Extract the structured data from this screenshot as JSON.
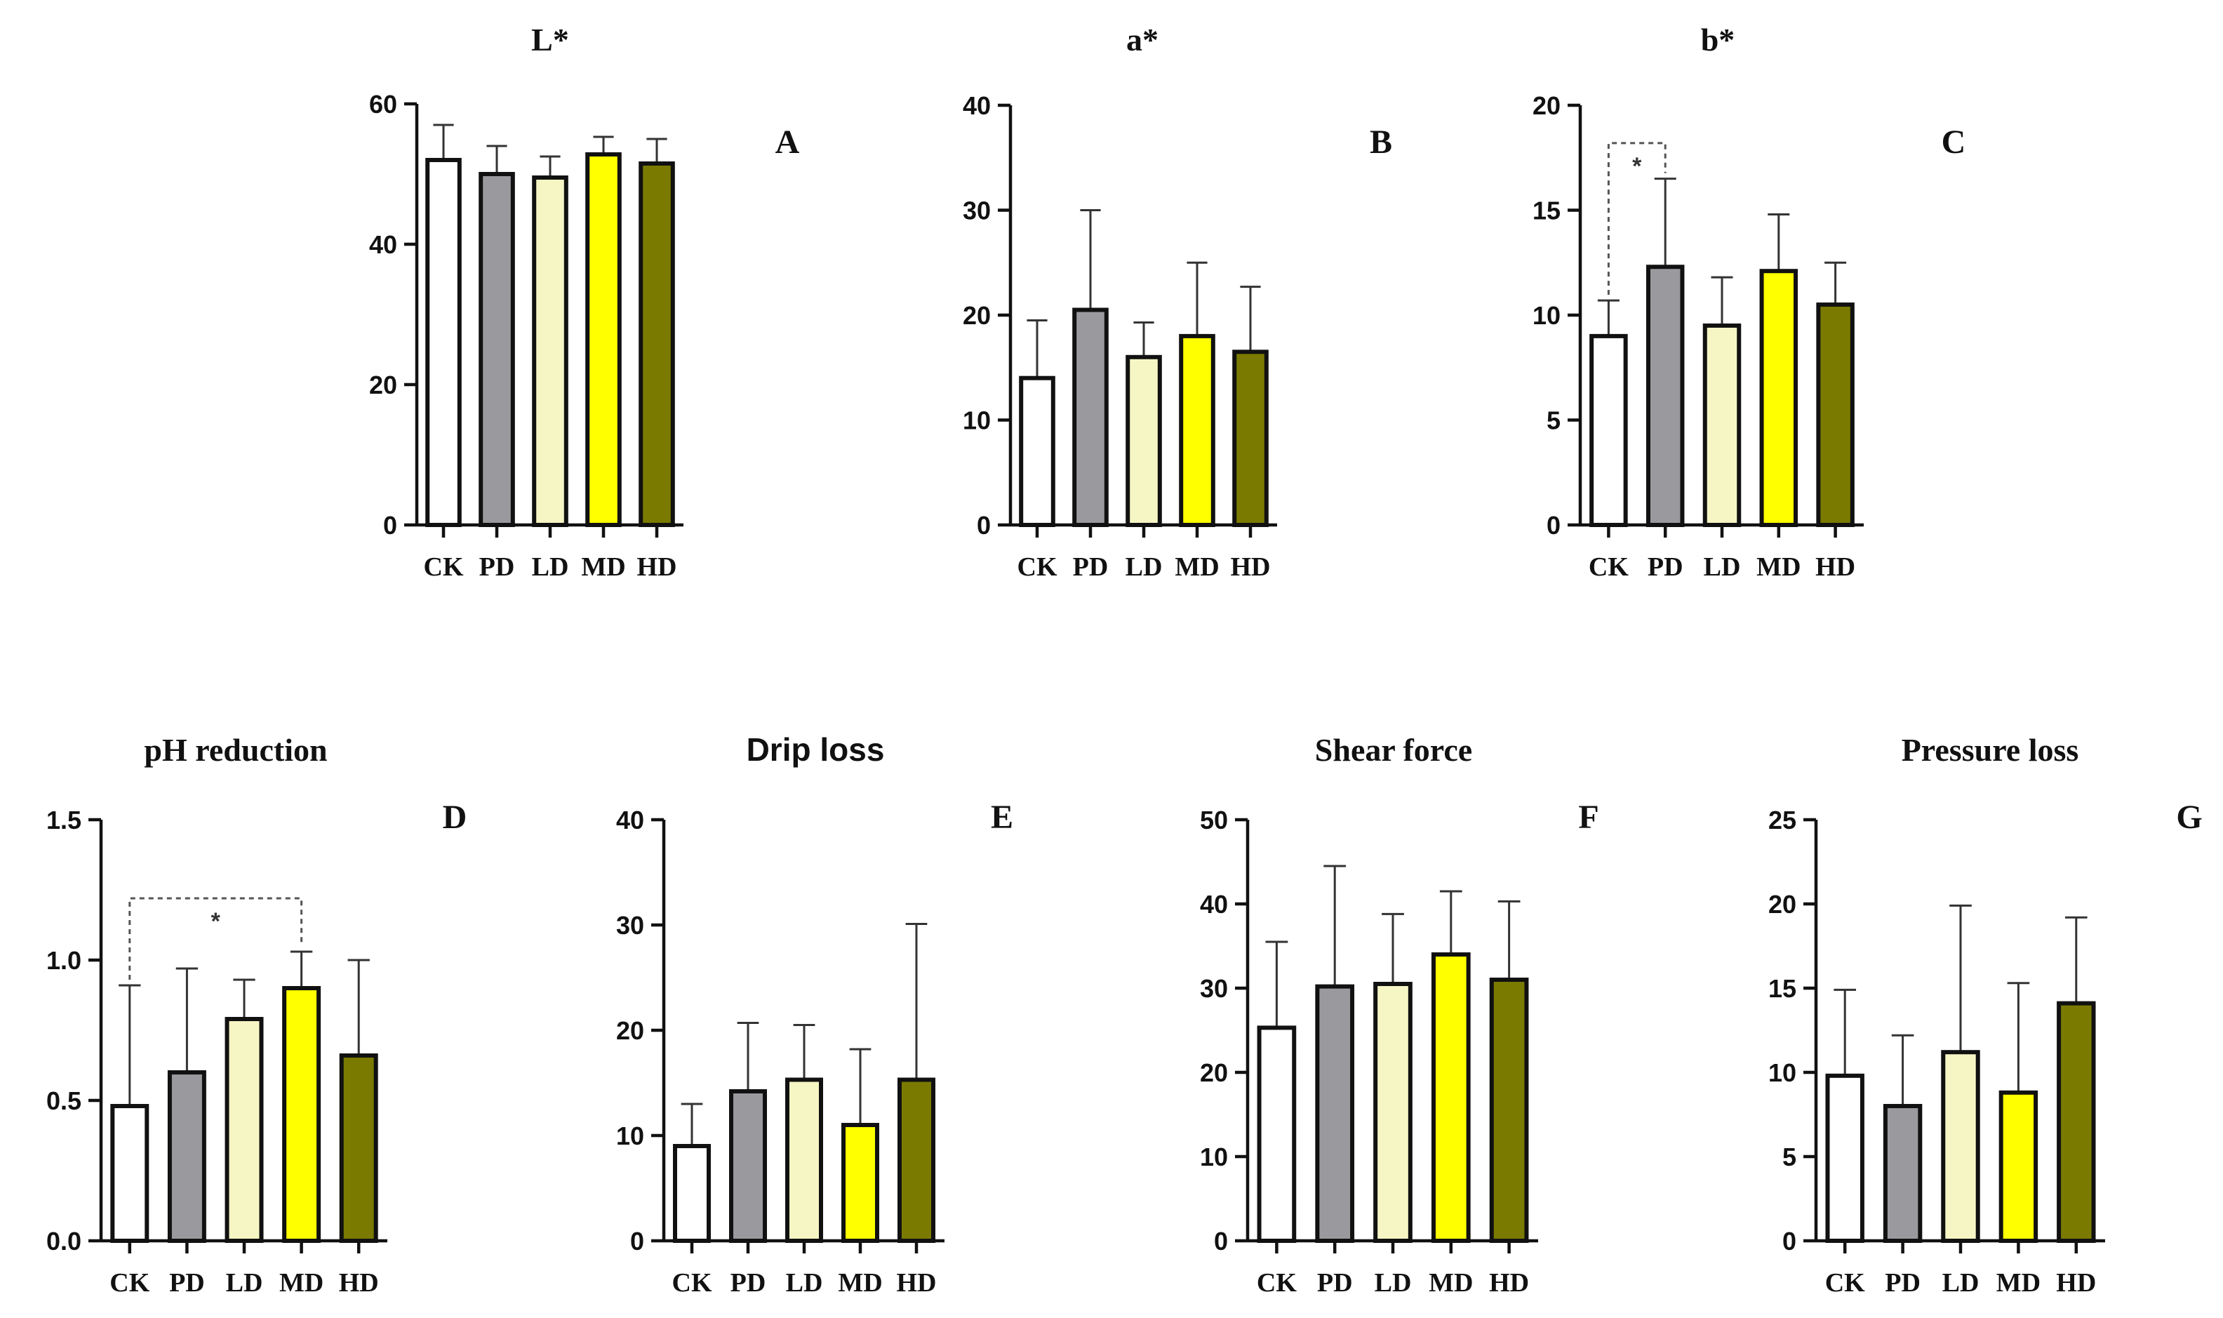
{
  "figure": {
    "categories": [
      "CK",
      "PD",
      "LD",
      "MD",
      "HD"
    ],
    "bar_colors": [
      "#ffffff",
      "#9a9a9e",
      "#f5f6c3",
      "#ffff00",
      "#7a7a00"
    ],
    "bar_stroke": "#111111"
  },
  "chart_data": [
    {
      "id": "L",
      "type": "bar",
      "panel_label": "A",
      "title": "L*",
      "title_font": "serif",
      "categories": [
        "CK",
        "PD",
        "LD",
        "MD",
        "HD"
      ],
      "values": [
        52.0,
        50.0,
        49.5,
        52.8,
        51.5
      ],
      "errors": [
        5.0,
        4.0,
        3.0,
        2.5,
        3.5
      ],
      "ylim": [
        0,
        60
      ],
      "yticks": [
        "0",
        "20",
        "40",
        "60"
      ],
      "ytick_values": [
        0,
        20,
        40,
        60
      ],
      "significance": null
    },
    {
      "id": "a",
      "type": "bar",
      "panel_label": "B",
      "title": "a*",
      "title_font": "serif",
      "categories": [
        "CK",
        "PD",
        "LD",
        "MD",
        "HD"
      ],
      "values": [
        14.0,
        20.5,
        16.0,
        18.0,
        16.5
      ],
      "errors": [
        5.5,
        9.5,
        3.3,
        7.0,
        6.2
      ],
      "ylim": [
        0,
        40
      ],
      "yticks": [
        "0",
        "10",
        "20",
        "30",
        "40"
      ],
      "ytick_values": [
        0,
        10,
        20,
        30,
        40
      ],
      "significance": null
    },
    {
      "id": "b",
      "type": "bar",
      "panel_label": "C",
      "title": "b*",
      "title_font": "serif",
      "categories": [
        "CK",
        "PD",
        "LD",
        "MD",
        "HD"
      ],
      "values": [
        9.0,
        12.3,
        9.5,
        12.1,
        10.5
      ],
      "errors": [
        1.7,
        4.2,
        2.3,
        2.7,
        2.0
      ],
      "ylim": [
        0,
        20
      ],
      "yticks": [
        "0",
        "5",
        "10",
        "15",
        "20"
      ],
      "ytick_values": [
        0,
        5,
        10,
        15,
        20
      ],
      "significance": {
        "from": 0,
        "to": 1,
        "y": 18.2,
        "label": "*"
      }
    },
    {
      "id": "ph",
      "type": "bar",
      "panel_label": "D",
      "title": "pH reduction",
      "title_font": "serif",
      "categories": [
        "CK",
        "PD",
        "LD",
        "MD",
        "HD"
      ],
      "values": [
        0.48,
        0.6,
        0.79,
        0.9,
        0.66
      ],
      "errors": [
        0.43,
        0.37,
        0.14,
        0.13,
        0.34
      ],
      "ylim": [
        0,
        1.5
      ],
      "yticks": [
        "0.0",
        "0.5",
        "1.0",
        "1.5"
      ],
      "ytick_values": [
        0,
        0.5,
        1.0,
        1.5
      ],
      "significance": {
        "from": 0,
        "to": 3,
        "y": 1.22,
        "label": "*"
      }
    },
    {
      "id": "drip",
      "type": "bar",
      "panel_label": "E",
      "title": "Drip loss",
      "title_font": "sans",
      "categories": [
        "CK",
        "PD",
        "LD",
        "MD",
        "HD"
      ],
      "values": [
        9.0,
        14.2,
        15.3,
        11.0,
        15.3
      ],
      "errors": [
        4.0,
        6.5,
        5.2,
        7.2,
        14.8
      ],
      "ylim": [
        0,
        40
      ],
      "yticks": [
        "0",
        "10",
        "20",
        "30",
        "40"
      ],
      "ytick_values": [
        0,
        10,
        20,
        30,
        40
      ],
      "significance": null
    },
    {
      "id": "shear",
      "type": "bar",
      "panel_label": "F",
      "title": "Shear force",
      "title_font": "serif",
      "categories": [
        "CK",
        "PD",
        "LD",
        "MD",
        "HD"
      ],
      "values": [
        25.3,
        30.2,
        30.5,
        34.0,
        31.0
      ],
      "errors": [
        10.2,
        14.3,
        8.3,
        7.5,
        9.3
      ],
      "ylim": [
        0,
        50
      ],
      "yticks": [
        "0",
        "10",
        "20",
        "30",
        "40",
        "50"
      ],
      "ytick_values": [
        0,
        10,
        20,
        30,
        40,
        50
      ],
      "significance": null
    },
    {
      "id": "pressure",
      "type": "bar",
      "panel_label": "G",
      "title": "Pressure loss",
      "title_font": "serif",
      "categories": [
        "CK",
        "PD",
        "LD",
        "MD",
        "HD"
      ],
      "values": [
        9.8,
        8.0,
        11.2,
        8.8,
        14.1
      ],
      "errors": [
        5.1,
        4.2,
        8.7,
        6.5,
        5.1
      ],
      "ylim": [
        0,
        25
      ],
      "yticks": [
        "0",
        "5",
        "10",
        "15",
        "20",
        "25"
      ],
      "ytick_values": [
        0,
        5,
        10,
        15,
        20,
        25
      ],
      "significance": null
    }
  ]
}
